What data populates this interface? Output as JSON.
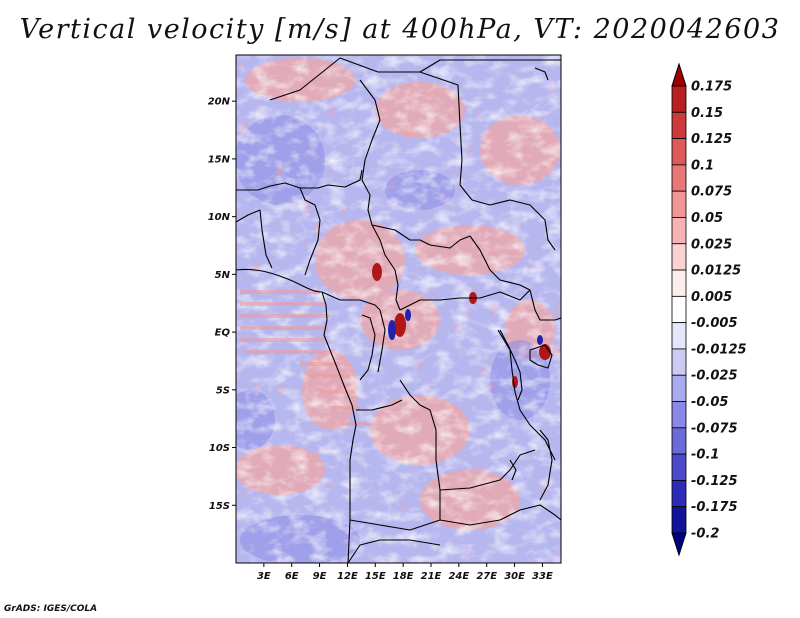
{
  "title": "Vertical velocity [m/s] at 400hPa, VT: 2020042603",
  "credit": "GrADS: IGES/COLA",
  "map": {
    "lat_labels": [
      "20N",
      "15N",
      "10N",
      "5N",
      "EQ",
      "5S",
      "10S",
      "15S"
    ],
    "lat_values": [
      20,
      15,
      10,
      5,
      0,
      -5,
      -10,
      -15
    ],
    "lon_labels": [
      "3E",
      "6E",
      "9E",
      "12E",
      "15E",
      "18E",
      "21E",
      "24E",
      "27E",
      "30E",
      "33E"
    ],
    "lon_values": [
      3,
      6,
      9,
      12,
      15,
      18,
      21,
      24,
      27,
      30,
      33
    ],
    "lon_range": [
      0,
      35
    ],
    "lat_range": [
      -20,
      24
    ]
  },
  "colorbar": {
    "labels": [
      "0.175",
      "0.15",
      "0.125",
      "0.1",
      "0.075",
      "0.05",
      "0.025",
      "0.0125",
      "0.005",
      "-0.005",
      "-0.0125",
      "-0.025",
      "-0.05",
      "-0.075",
      "-0.1",
      "-0.125",
      "-0.175",
      "-0.2"
    ],
    "colors": [
      "#a00000",
      "#b82020",
      "#cc3a3a",
      "#dd5a5a",
      "#e87878",
      "#f09696",
      "#f6b4b4",
      "#fad2d2",
      "#fdeeee",
      "#ffffff",
      "#e6e6fb",
      "#cbcbf6",
      "#aaaaf0",
      "#8a8ae6",
      "#6a6ad9",
      "#4a4acb",
      "#2c2cb8",
      "#12129a",
      "#000080"
    ]
  }
}
